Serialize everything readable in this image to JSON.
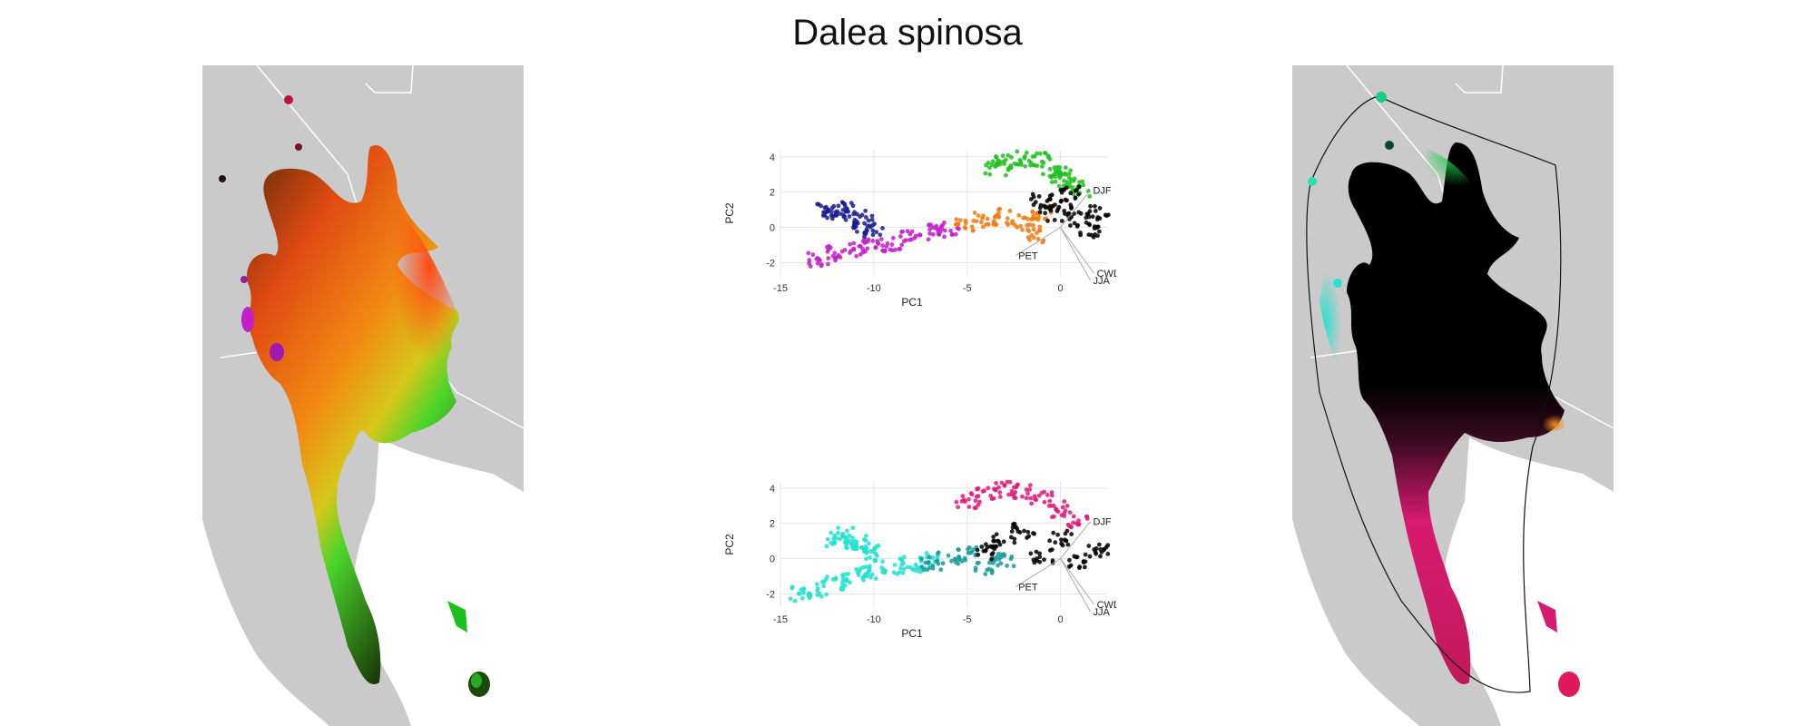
{
  "title": "Dalea spinosa",
  "chart_data": [
    {
      "type": "scatter",
      "panel": "top-pca",
      "xlabel": "PC1",
      "ylabel": "PC2",
      "xlim": [
        -15,
        2.5
      ],
      "ylim": [
        -2.8,
        4.4
      ],
      "xticks": [
        -15,
        -10,
        -5,
        0
      ],
      "yticks": [
        -2,
        0,
        2,
        4
      ],
      "grid": true,
      "vectors": [
        {
          "label": "DJF",
          "end": [
            1.6,
            2.1
          ]
        },
        {
          "label": "PET",
          "end": [
            -2.4,
            -1.6
          ]
        },
        {
          "label": "CWD",
          "end": [
            1.8,
            -2.6
          ]
        },
        {
          "label": "JJA",
          "end": [
            1.6,
            -3.0
          ]
        }
      ],
      "colors": {
        "green": "#1fbf1f",
        "orange": "#f27a12",
        "magenta": "#c21fc9",
        "navy": "#1a1f8f",
        "black": "#000000"
      },
      "point_clusters": [
        {
          "x": [
            -13,
            -12,
            -11,
            -10,
            -9,
            -8,
            -7,
            -6
          ],
          "y": [
            -1.8,
            -1.5,
            -1.2,
            -1.1,
            -0.9,
            -0.6,
            -0.3,
            -0.1
          ],
          "color": "#c21fc9"
        },
        {
          "x": [
            -12.5,
            -12,
            -11.5,
            -11,
            -10.5,
            -10
          ],
          "y": [
            1.1,
            0.8,
            1.0,
            0.6,
            0.2,
            -0.2
          ],
          "color": "#1a1f8f"
        },
        {
          "x": [
            -5,
            -4,
            -3,
            -2,
            -1.5,
            -1
          ],
          "y": [
            0.2,
            0.4,
            0.6,
            0.3,
            -0.4,
            0.8
          ],
          "color": "#f27a12"
        },
        {
          "x": [
            -3.5,
            -3,
            -2,
            -1,
            -0.5,
            0,
            0.5,
            1
          ],
          "y": [
            3.4,
            3.7,
            3.9,
            3.8,
            3.2,
            3.0,
            2.6,
            2.2
          ],
          "color": "#1fbf1f"
        },
        {
          "x": [
            -1,
            -0.5,
            0,
            0.5,
            1,
            1.5,
            2
          ],
          "y": [
            1.5,
            0.8,
            1.2,
            1.9,
            0.5,
            -0.2,
            0.9
          ],
          "color": "#000000"
        }
      ]
    },
    {
      "type": "scatter",
      "panel": "bottom-pca",
      "xlabel": "PC1",
      "ylabel": "PC2",
      "xlim": [
        -15,
        2.5
      ],
      "ylim": [
        -2.8,
        4.4
      ],
      "xticks": [
        -15,
        -10,
        -5,
        0
      ],
      "yticks": [
        -2,
        0,
        2,
        4
      ],
      "grid": true,
      "vectors": [
        {
          "label": "DJF",
          "end": [
            1.6,
            2.1
          ]
        },
        {
          "label": "PET",
          "end": [
            -2.4,
            -1.6
          ]
        },
        {
          "label": "CWD",
          "end": [
            1.8,
            -2.6
          ]
        },
        {
          "label": "JJA",
          "end": [
            1.6,
            -3.0
          ]
        }
      ],
      "colors": {
        "cyan": "#22e0d0",
        "teal": "#1a9a9a",
        "pink": "#e01a78",
        "black": "#000000"
      },
      "point_clusters": [
        {
          "x": [
            -14,
            -13,
            -12,
            -11,
            -10,
            -9,
            -8,
            -7
          ],
          "y": [
            -2.0,
            -1.7,
            -1.3,
            -1.0,
            -0.8,
            -0.5,
            -0.3,
            -0.1
          ],
          "color": "#22e0d0"
        },
        {
          "x": [
            -12,
            -11.5,
            -11,
            -10.5,
            -10
          ],
          "y": [
            1.1,
            1.3,
            0.9,
            0.6,
            0.3
          ],
          "color": "#22e0d0"
        },
        {
          "x": [
            -7,
            -6,
            -5,
            -4,
            -3
          ],
          "y": [
            -0.2,
            0.1,
            0.3,
            -0.5,
            0.0
          ],
          "color": "#1a9a9a"
        },
        {
          "x": [
            -5,
            -4,
            -3,
            -2,
            -1,
            0,
            1
          ],
          "y": [
            3.3,
            3.6,
            3.9,
            3.8,
            3.4,
            2.8,
            2.2
          ],
          "color": "#e01a78"
        },
        {
          "x": [
            -4,
            -3,
            -2,
            -1,
            0,
            1,
            2
          ],
          "y": [
            0.4,
            1.0,
            1.6,
            0.2,
            1.2,
            -0.2,
            0.5
          ],
          "color": "#000000"
        }
      ]
    }
  ],
  "maps": {
    "left": {
      "colors": {
        "land": "#cacaca",
        "orange": "#f27a12",
        "red": "#e0301a",
        "green": "#2ad42a",
        "dark": "#2a2a10"
      }
    },
    "right": {
      "colors": {
        "land": "#cacaca",
        "black": "#000000",
        "green": "#1fc94a",
        "cyan": "#2ae0d0",
        "pink": "#d81a70"
      }
    }
  }
}
